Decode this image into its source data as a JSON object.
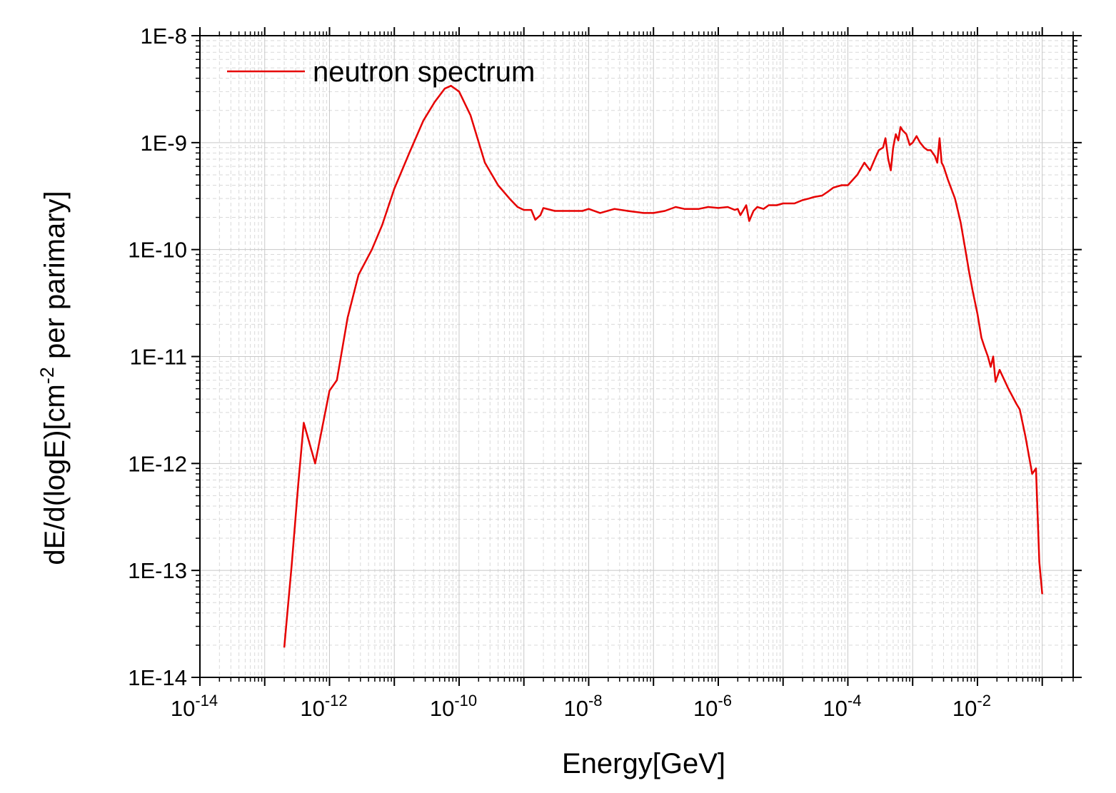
{
  "chart_data": {
    "type": "line",
    "title": "",
    "xlabel": "Energy[GeV]",
    "ylabel": "dE/d(logE)[cm-2 per parimary]",
    "ylabel_parts": {
      "before": "dE/d(logE)[cm",
      "sup": "-2",
      "after": " per parimary]"
    },
    "x_scale": "log",
    "y_scale": "log",
    "xlim": [
      1e-14,
      0.3
    ],
    "ylim": [
      1e-14,
      1e-08
    ],
    "grid": true,
    "legend_position": "top-left",
    "x_ticks": [
      {
        "value": 1e-14,
        "base": "10",
        "exp": "-14"
      },
      {
        "value": 1e-12,
        "base": "10",
        "exp": "-12"
      },
      {
        "value": 1e-10,
        "base": "10",
        "exp": "-10"
      },
      {
        "value": 1e-08,
        "base": "10",
        "exp": "-8"
      },
      {
        "value": 1e-06,
        "base": "10",
        "exp": "-6"
      },
      {
        "value": 0.0001,
        "base": "10",
        "exp": "-4"
      },
      {
        "value": 0.01,
        "base": "10",
        "exp": "-2"
      }
    ],
    "y_ticks": [
      {
        "value": 1e-08,
        "label": "1E-8"
      },
      {
        "value": 1e-09,
        "label": "1E-9"
      },
      {
        "value": 1e-10,
        "label": "1E-10"
      },
      {
        "value": 1e-11,
        "label": "1E-11"
      },
      {
        "value": 1e-12,
        "label": "1E-12"
      },
      {
        "value": 1e-13,
        "label": "1E-13"
      },
      {
        "value": 1e-14,
        "label": "1E-14"
      }
    ],
    "series": [
      {
        "name": "neutron spectrum",
        "color": "#e60000",
        "points": [
          [
            2e-13,
            1.9e-14
          ],
          [
            2.6e-13,
            1.1e-13
          ],
          [
            3.3e-13,
            6.5e-13
          ],
          [
            4e-13,
            2.4e-12
          ],
          [
            6e-13,
            1e-12
          ],
          [
            1e-12,
            4.8e-12
          ],
          [
            1.3e-12,
            6e-12
          ],
          [
            1.9e-12,
            2.3e-11
          ],
          [
            2.8e-12,
            5.8e-11
          ],
          [
            4.5e-12,
            1e-10
          ],
          [
            6.5e-12,
            1.7e-10
          ],
          [
            1e-11,
            3.7e-10
          ],
          [
            1.7e-11,
            8e-10
          ],
          [
            2.8e-11,
            1.6e-09
          ],
          [
            4.2e-11,
            2.4e-09
          ],
          [
            6e-11,
            3.2e-09
          ],
          [
            7.5e-11,
            3.4e-09
          ],
          [
            1e-10,
            3e-09
          ],
          [
            1.5e-10,
            1.8e-09
          ],
          [
            2.5e-10,
            6.5e-10
          ],
          [
            4e-10,
            4e-10
          ],
          [
            6e-10,
            3e-10
          ],
          [
            8e-10,
            2.5e-10
          ],
          [
            1e-09,
            2.35e-10
          ],
          [
            1.3e-09,
            2.35e-10
          ],
          [
            1.5e-09,
            1.9e-10
          ],
          [
            1.8e-09,
            2.1e-10
          ],
          [
            2e-09,
            2.45e-10
          ],
          [
            3e-09,
            2.3e-10
          ],
          [
            5e-09,
            2.3e-10
          ],
          [
            8e-09,
            2.3e-10
          ],
          [
            1e-08,
            2.4e-10
          ],
          [
            1.5e-08,
            2.2e-10
          ],
          [
            2.5e-08,
            2.4e-10
          ],
          [
            4e-08,
            2.3e-10
          ],
          [
            7e-08,
            2.2e-10
          ],
          [
            1e-07,
            2.2e-10
          ],
          [
            1.5e-07,
            2.3e-10
          ],
          [
            2.2e-07,
            2.5e-10
          ],
          [
            3e-07,
            2.4e-10
          ],
          [
            5e-07,
            2.4e-10
          ],
          [
            7e-07,
            2.5e-10
          ],
          [
            1e-06,
            2.45e-10
          ],
          [
            1.4e-06,
            2.5e-10
          ],
          [
            1.8e-06,
            2.35e-10
          ],
          [
            2e-06,
            2.4e-10
          ],
          [
            2.2e-06,
            2.1e-10
          ],
          [
            2.4e-06,
            2.3e-10
          ],
          [
            2.7e-06,
            2.6e-10
          ],
          [
            3e-06,
            1.85e-10
          ],
          [
            3.5e-06,
            2.3e-10
          ],
          [
            4e-06,
            2.5e-10
          ],
          [
            5e-06,
            2.4e-10
          ],
          [
            6e-06,
            2.6e-10
          ],
          [
            8e-06,
            2.6e-10
          ],
          [
            1e-05,
            2.7e-10
          ],
          [
            1.5e-05,
            2.7e-10
          ],
          [
            2e-05,
            2.9e-10
          ],
          [
            2.5e-05,
            3e-10
          ],
          [
            3e-05,
            3.1e-10
          ],
          [
            4e-05,
            3.2e-10
          ],
          [
            5e-05,
            3.5e-10
          ],
          [
            6e-05,
            3.8e-10
          ],
          [
            8e-05,
            4e-10
          ],
          [
            0.0001,
            4e-10
          ],
          [
            0.00014,
            5e-10
          ],
          [
            0.00018,
            6.5e-10
          ],
          [
            0.00022,
            5.5e-10
          ],
          [
            0.00026,
            7e-10
          ],
          [
            0.0003,
            8.5e-10
          ],
          [
            0.00035,
            9e-10
          ],
          [
            0.00038,
            1.1e-09
          ],
          [
            0.00042,
            7e-10
          ],
          [
            0.00046,
            5.5e-10
          ],
          [
            0.0005,
            9e-10
          ],
          [
            0.00055,
            1.2e-09
          ],
          [
            0.0006,
            1.05e-09
          ],
          [
            0.00065,
            1.4e-09
          ],
          [
            0.0007,
            1.3e-09
          ],
          [
            0.0008,
            1.2e-09
          ],
          [
            0.0009,
            9.5e-10
          ],
          [
            0.001,
            1e-09
          ],
          [
            0.00115,
            1.15e-09
          ],
          [
            0.0013,
            1e-09
          ],
          [
            0.0015,
            9e-10
          ],
          [
            0.0017,
            8.5e-10
          ],
          [
            0.0019,
            8.5e-10
          ],
          [
            0.0022,
            7.5e-10
          ],
          [
            0.0024,
            6.5e-10
          ],
          [
            0.0026,
            1.1e-09
          ],
          [
            0.0028,
            6.5e-10
          ],
          [
            0.003,
            6e-10
          ],
          [
            0.0035,
            4.5e-10
          ],
          [
            0.0045,
            3e-10
          ],
          [
            0.0055,
            1.8e-10
          ],
          [
            0.0065,
            1e-10
          ],
          [
            0.0075,
            6e-11
          ],
          [
            0.0085,
            4e-11
          ],
          [
            0.01,
            2.5e-11
          ],
          [
            0.0115,
            1.5e-11
          ],
          [
            0.013,
            1.2e-11
          ],
          [
            0.0145,
            1e-11
          ],
          [
            0.016,
            8e-12
          ],
          [
            0.0175,
            1e-11
          ],
          [
            0.019,
            5.8e-12
          ],
          [
            0.022,
            7.5e-12
          ],
          [
            0.03,
            5e-12
          ],
          [
            0.04,
            3.6e-12
          ],
          [
            0.045,
            3.2e-12
          ],
          [
            0.055,
            1.8e-12
          ],
          [
            0.07,
            8e-13
          ],
          [
            0.08,
            9e-13
          ],
          [
            0.09,
            1.2e-13
          ],
          [
            0.1,
            6e-14
          ]
        ]
      }
    ]
  }
}
